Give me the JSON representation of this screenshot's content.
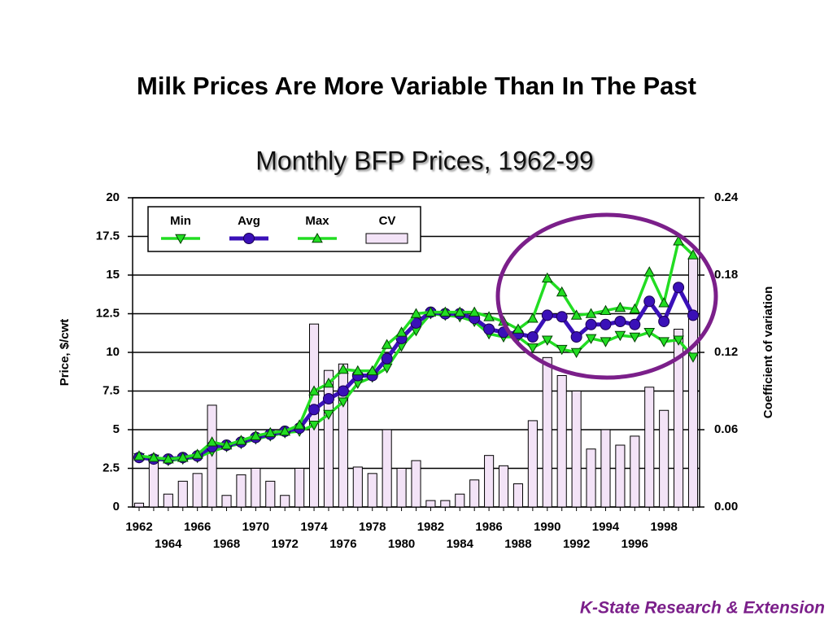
{
  "chart_data": {
    "type": "line",
    "title": "Milk Prices Are More Variable Than In The Past",
    "subtitle": "Monthly BFP Prices, 1962-99",
    "y_label": "Price, $/cwt",
    "y2_label": "Coefficient of variation",
    "footer": "K-State Research & Extension",
    "categories": [
      "1962",
      null,
      "1964",
      null,
      "1966",
      null,
      "1968",
      null,
      "1970",
      null,
      "1972",
      null,
      "1974",
      null,
      "1976",
      null,
      "1978",
      null,
      "1980",
      null,
      "1982",
      null,
      "1984",
      null,
      "1986",
      null,
      "1988",
      null,
      "1990",
      null,
      "1992",
      null,
      "1994",
      null,
      "1996",
      null,
      "1998",
      null,
      null
    ],
    "ylim": [
      0,
      20
    ],
    "yticks": [
      0,
      2.5,
      5,
      7.5,
      10,
      12.5,
      15,
      17.5,
      20
    ],
    "y2lim": [
      0,
      0.24
    ],
    "y2ticks": [
      {
        "value": 0,
        "label": "0.00"
      },
      0.06,
      0.12,
      0.18,
      0.24
    ],
    "grid": true,
    "series": [
      {
        "name": "CV",
        "type": "bar",
        "axis": "y2",
        "color": "#f3e3f7",
        "values": [
          0.003,
          0.035,
          0.01,
          0.02,
          0.026,
          0.079,
          0.009,
          0.025,
          0.03,
          0.02,
          0.009,
          0.03,
          0.142,
          0.106,
          0.111,
          0.031,
          0.026,
          0.06,
          0.03,
          0.036,
          0.005,
          0.005,
          0.01,
          0.021,
          0.04,
          0.032,
          0.018,
          0.067,
          0.116,
          0.102,
          0.09,
          0.045,
          0.06,
          0.048,
          0.055,
          0.093,
          0.075,
          0.138,
          0.193
        ]
      },
      {
        "name": "Min",
        "type": "line",
        "marker": "triangle-down",
        "color": "#22dd22",
        "values": [
          3.2,
          3.1,
          3.0,
          3.1,
          3.2,
          3.6,
          3.9,
          4.1,
          4.4,
          4.6,
          4.8,
          4.9,
          5.3,
          6.0,
          6.8,
          8.0,
          8.4,
          9.0,
          10.4,
          11.4,
          12.5,
          12.4,
          12.3,
          12.0,
          11.2,
          11.0,
          11.0,
          10.3,
          10.8,
          10.2,
          10.0,
          10.9,
          10.7,
          11.1,
          11.0,
          11.3,
          10.7,
          10.8,
          9.7
        ]
      },
      {
        "name": "Avg",
        "type": "line",
        "marker": "circle",
        "color": "#3a10b8",
        "values": [
          3.2,
          3.1,
          3.1,
          3.2,
          3.3,
          3.9,
          4.0,
          4.2,
          4.5,
          4.7,
          4.9,
          5.1,
          6.3,
          7.0,
          7.5,
          8.5,
          8.5,
          9.6,
          10.9,
          11.9,
          12.6,
          12.5,
          12.5,
          12.2,
          11.5,
          11.3,
          11.2,
          11.0,
          12.4,
          12.3,
          11.0,
          11.8,
          11.8,
          12.0,
          11.8,
          13.3,
          12.0,
          14.2,
          12.4
        ]
      },
      {
        "name": "Max",
        "type": "line",
        "marker": "triangle-up",
        "color": "#22dd22",
        "values": [
          3.3,
          3.2,
          3.1,
          3.2,
          3.4,
          4.2,
          4.0,
          4.3,
          4.6,
          4.8,
          4.9,
          5.3,
          7.5,
          8.0,
          8.9,
          8.8,
          8.8,
          10.5,
          11.3,
          12.5,
          12.6,
          12.6,
          12.6,
          12.6,
          12.3,
          12.0,
          11.5,
          12.2,
          14.8,
          13.9,
          12.4,
          12.5,
          12.7,
          12.9,
          12.8,
          15.2,
          13.2,
          17.2,
          16.3
        ]
      }
    ],
    "legend_order": [
      1,
      2,
      3,
      0
    ]
  }
}
